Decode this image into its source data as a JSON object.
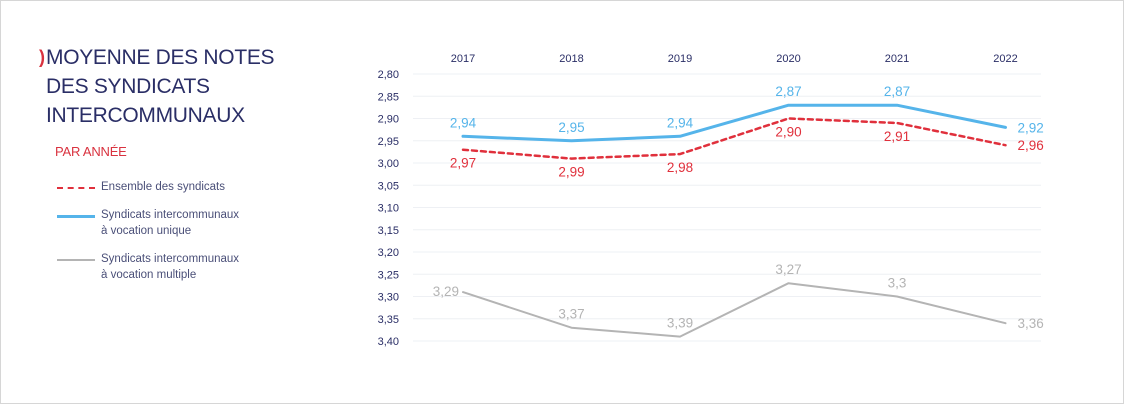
{
  "title_lines": [
    "MOYENNE DES NOTES",
    "DES SYNDICATS",
    "INTERCOMMUNAUX"
  ],
  "subtitle": "PAR ANNÉE",
  "bullet": ")",
  "legend": [
    {
      "label": "Ensemble des syndicats",
      "color": "#e0303c",
      "style": "dashed"
    },
    {
      "label": "Syndicats intercommunaux\nà vocation unique",
      "color": "#55b4ea",
      "style": "solid"
    },
    {
      "label": "Syndicats intercommunaux\nà vocation multiple",
      "color": "#b4b4b4",
      "style": "solid"
    }
  ],
  "chart_data": {
    "type": "line",
    "categories": [
      "2017",
      "2018",
      "2019",
      "2020",
      "2021",
      "2022"
    ],
    "y_ticks": [
      "2,80",
      "2,85",
      "2,90",
      "2,95",
      "3,00",
      "3,05",
      "3,10",
      "3,15",
      "3,20",
      "3,25",
      "3,30",
      "3,35",
      "3,40"
    ],
    "ylim": [
      2.8,
      3.4
    ],
    "y_inverted": true,
    "x_axis_position": "top",
    "grid": true,
    "series": [
      {
        "name": "Ensemble des syndicats",
        "color": "#e0303c",
        "dashed": true,
        "values": [
          2.97,
          2.99,
          2.98,
          2.9,
          2.91,
          2.96
        ],
        "labels": [
          "2,97",
          "2,99",
          "2,98",
          "2,90",
          "2,91",
          "2,96"
        ],
        "label_pos": [
          "below",
          "below",
          "below",
          "below",
          "below",
          "right"
        ]
      },
      {
        "name": "Syndicats intercommunaux à vocation unique",
        "color": "#55b4ea",
        "dashed": false,
        "values": [
          2.94,
          2.95,
          2.94,
          2.87,
          2.87,
          2.92
        ],
        "labels": [
          "2,94",
          "2,95",
          "2,94",
          "2,87",
          "2,87",
          "2,92"
        ],
        "label_pos": [
          "above",
          "above",
          "above",
          "above",
          "above",
          "right"
        ]
      },
      {
        "name": "Syndicats intercommunaux à vocation multiple",
        "color": "#b4b4b4",
        "dashed": false,
        "values": [
          3.29,
          3.37,
          3.39,
          3.27,
          3.3,
          3.36
        ],
        "labels": [
          "3,29",
          "3,37",
          "3,39",
          "3,27",
          "3,3",
          "3,36"
        ],
        "label_pos": [
          "left",
          "above",
          "above",
          "above",
          "above",
          "right"
        ]
      }
    ]
  }
}
